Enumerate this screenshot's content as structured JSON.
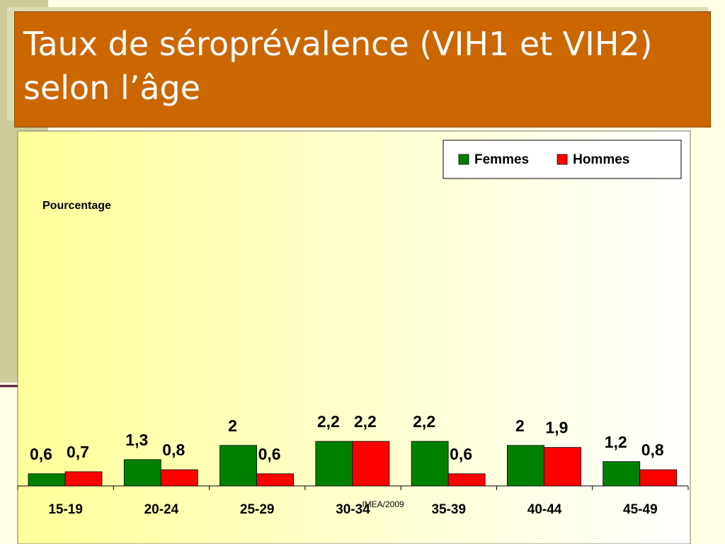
{
  "chart_data": {
    "type": "bar",
    "title": "Taux de séroprévalence (VIH1 et VIH2) selon l’âge",
    "y_label": "Pourcentage",
    "source": "IMEA/2009",
    "categories": [
      "15-19",
      "20-24",
      "25-29",
      "30-34",
      "35-39",
      "40-44",
      "45-49"
    ],
    "series": [
      {
        "name": "Femmes",
        "color": "#008000",
        "values": [
          0.6,
          1.3,
          2,
          2.2,
          2.2,
          2,
          1.2
        ],
        "value_labels": [
          "0,6",
          "1,3",
          "2",
          "2,2",
          "2,2",
          "2",
          "1,2"
        ]
      },
      {
        "name": "Hommes",
        "color": "#ff0000",
        "values": [
          0.7,
          0.8,
          0.6,
          2.2,
          0.6,
          1.9,
          0.8
        ],
        "value_labels": [
          "0,7",
          "0,8",
          "0,6",
          "2,2",
          "0,6",
          "1,9",
          "0,8"
        ]
      }
    ],
    "legend": "top-right"
  }
}
